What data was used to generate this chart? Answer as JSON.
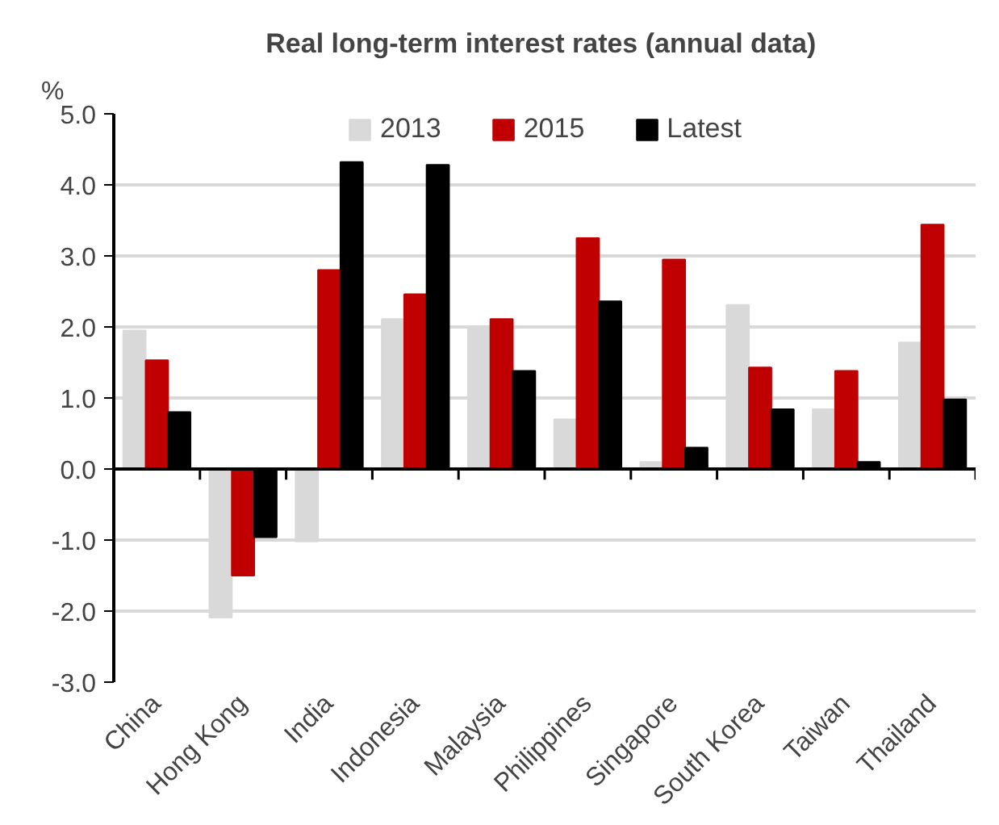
{
  "chart_data": {
    "type": "bar",
    "title": "Real long-term interest rates  (annual data)",
    "ylabel": "%",
    "categories": [
      "China",
      "Hong Kong",
      "India",
      "Indonesia",
      "Malaysia",
      "Philippines",
      "Singapore",
      "South Korea",
      "Taiwan",
      "Thailand"
    ],
    "series": [
      {
        "name": "2013",
        "color": "#d9d9d9",
        "values": [
          1.95,
          -2.09,
          -1.02,
          2.11,
          1.98,
          0.7,
          0.1,
          2.31,
          0.84,
          1.78
        ]
      },
      {
        "name": "2015",
        "color": "#c00000",
        "values": [
          1.53,
          -1.5,
          2.8,
          2.46,
          2.11,
          3.25,
          2.95,
          1.43,
          1.38,
          3.44
        ]
      },
      {
        "name": "Latest",
        "color": "#000000",
        "values": [
          0.8,
          -0.96,
          4.32,
          4.28,
          1.38,
          2.36,
          0.3,
          0.84,
          0.1,
          0.98
        ]
      }
    ],
    "ylim": [
      -3,
      5
    ],
    "yticks": [
      {
        "value": -3,
        "label": "-3.0"
      },
      {
        "value": -2,
        "label": "-2.0"
      },
      {
        "value": -1,
        "label": "-1.0"
      },
      {
        "value": 0,
        "label": "0.0"
      },
      {
        "value": 1,
        "label": "1.0"
      },
      {
        "value": 2,
        "label": "2.0"
      },
      {
        "value": 3,
        "label": "3.0"
      },
      {
        "value": 4,
        "label": "4.0"
      },
      {
        "value": 5,
        "label": "5.0"
      }
    ],
    "grid": "y",
    "legend": "top"
  }
}
